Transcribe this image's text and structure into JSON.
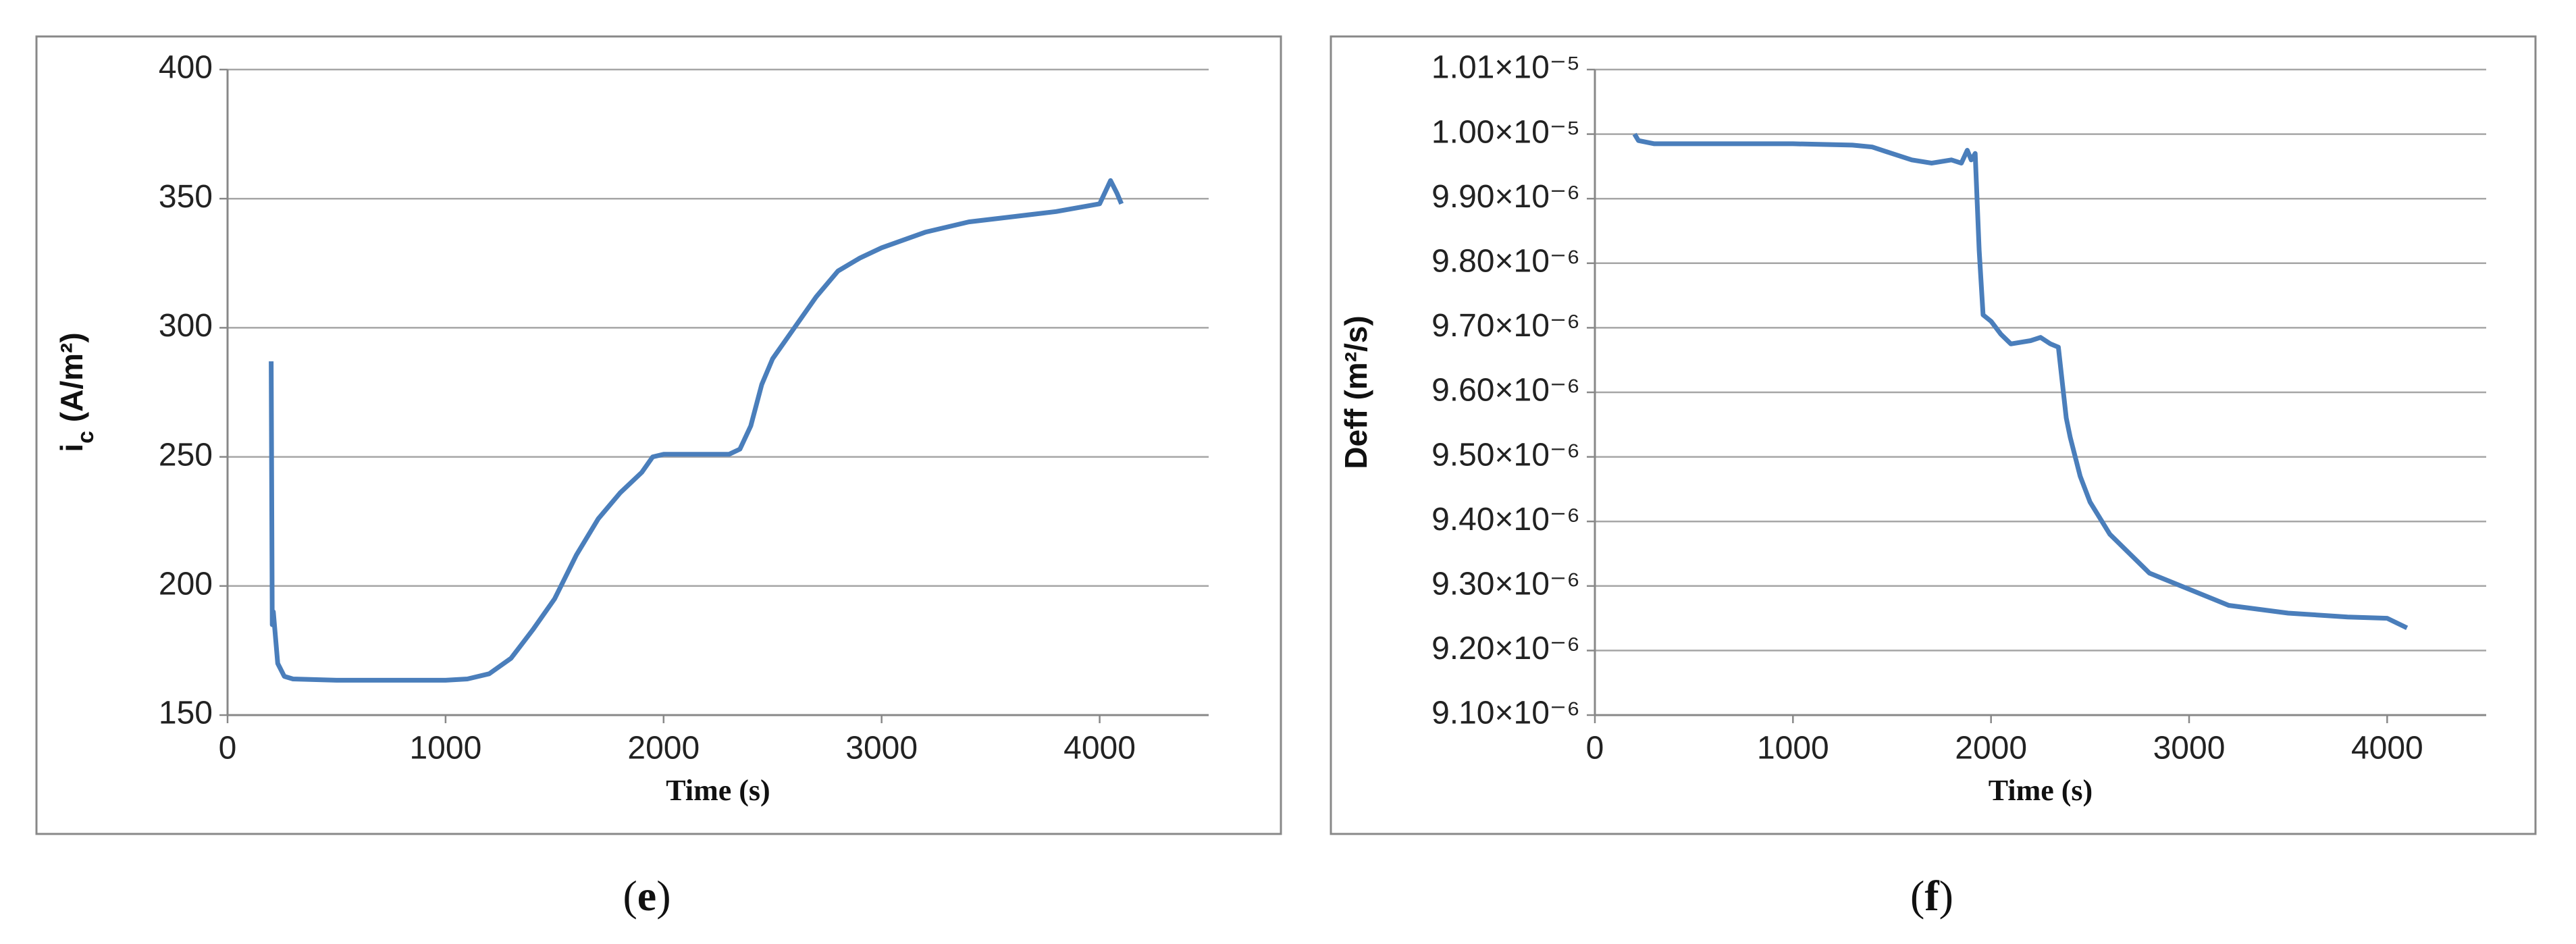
{
  "chart_data": [
    {
      "type": "line",
      "y_label": [
        {
          "text": "i",
          "style": "normal"
        },
        {
          "text": "c",
          "style": "sub"
        },
        {
          "text": " (A/m²)",
          "style": "normal"
        }
      ],
      "x_label": "Time (s)",
      "caption": [
        "(",
        "e",
        ")"
      ],
      "xlim": [
        0,
        4500
      ],
      "xticks": [
        0,
        1000,
        2000,
        3000,
        4000
      ],
      "ylim": [
        150,
        400
      ],
      "yticks": [
        150,
        200,
        250,
        300,
        350,
        400
      ],
      "grid": true,
      "x": [
        200,
        205,
        210,
        230,
        260,
        300,
        500,
        800,
        1000,
        1100,
        1200,
        1300,
        1400,
        1500,
        1600,
        1700,
        1800,
        1900,
        1950,
        2000,
        2100,
        2200,
        2300,
        2350,
        2400,
        2450,
        2500,
        2600,
        2700,
        2800,
        2900,
        3000,
        3200,
        3400,
        3600,
        3800,
        4000,
        4050,
        4080,
        4100
      ],
      "series": [
        {
          "color": "#4a7ebb",
          "values": [
            287,
            185,
            190,
            170,
            165,
            164,
            163.5,
            163.5,
            163.5,
            164,
            166,
            172,
            183,
            195,
            212,
            226,
            236,
            244,
            250,
            251,
            251,
            251,
            251,
            253,
            262,
            278,
            288,
            300,
            312,
            322,
            327,
            331,
            337,
            341,
            343,
            345,
            348,
            357,
            352,
            348
          ]
        }
      ]
    },
    {
      "type": "line",
      "y_label": [
        {
          "text": "Deff (m²/s)",
          "style": "normal"
        }
      ],
      "x_label": "Time (s)",
      "caption": [
        "(",
        "f",
        ")"
      ],
      "xlim": [
        0,
        4500
      ],
      "xticks": [
        0,
        1000,
        2000,
        3000,
        4000
      ],
      "ylim": [
        9.1e-06,
        1.01e-05
      ],
      "yticks": [
        {
          "value": 9.1e-06,
          "label": "9.10×10⁻⁶"
        },
        {
          "value": 9.2e-06,
          "label": "9.20×10⁻⁶"
        },
        {
          "value": 9.3e-06,
          "label": "9.30×10⁻⁶"
        },
        {
          "value": 9.4e-06,
          "label": "9.40×10⁻⁶"
        },
        {
          "value": 9.5e-06,
          "label": "9.50×10⁻⁶"
        },
        {
          "value": 9.6e-06,
          "label": "9.60×10⁻⁶"
        },
        {
          "value": 9.7e-06,
          "label": "9.70×10⁻⁶"
        },
        {
          "value": 9.8e-06,
          "label": "9.80×10⁻⁶"
        },
        {
          "value": 9.9e-06,
          "label": "9.90×10⁻⁶"
        },
        {
          "value": 1e-05,
          "label": "1.00×10⁻⁵"
        },
        {
          "value": 1.01e-05,
          "label": "1.01×10⁻⁵"
        }
      ],
      "grid": true,
      "x": [
        200,
        220,
        300,
        600,
        1000,
        1300,
        1400,
        1500,
        1600,
        1700,
        1800,
        1850,
        1880,
        1900,
        1920,
        1940,
        1960,
        2000,
        2050,
        2100,
        2200,
        2250,
        2300,
        2340,
        2380,
        2400,
        2450,
        2500,
        2600,
        2700,
        2800,
        3000,
        3200,
        3500,
        3800,
        4000,
        4100
      ],
      "series": [
        {
          "color": "#4a7ebb",
          "values": [
            1e-05,
            9.99e-06,
            9.985e-06,
            9.985e-06,
            9.985e-06,
            9.983e-06,
            9.98e-06,
            9.97e-06,
            9.96e-06,
            9.955e-06,
            9.96e-06,
            9.955e-06,
            9.975e-06,
            9.96e-06,
            9.97e-06,
            9.82e-06,
            9.72e-06,
            9.71e-06,
            9.69e-06,
            9.675e-06,
            9.68e-06,
            9.685e-06,
            9.675e-06,
            9.67e-06,
            9.56e-06,
            9.53e-06,
            9.47e-06,
            9.43e-06,
            9.38e-06,
            9.35e-06,
            9.32e-06,
            9.295e-06,
            9.27e-06,
            9.258e-06,
            9.252e-06,
            9.25e-06,
            9.235e-06
          ]
        }
      ]
    }
  ]
}
